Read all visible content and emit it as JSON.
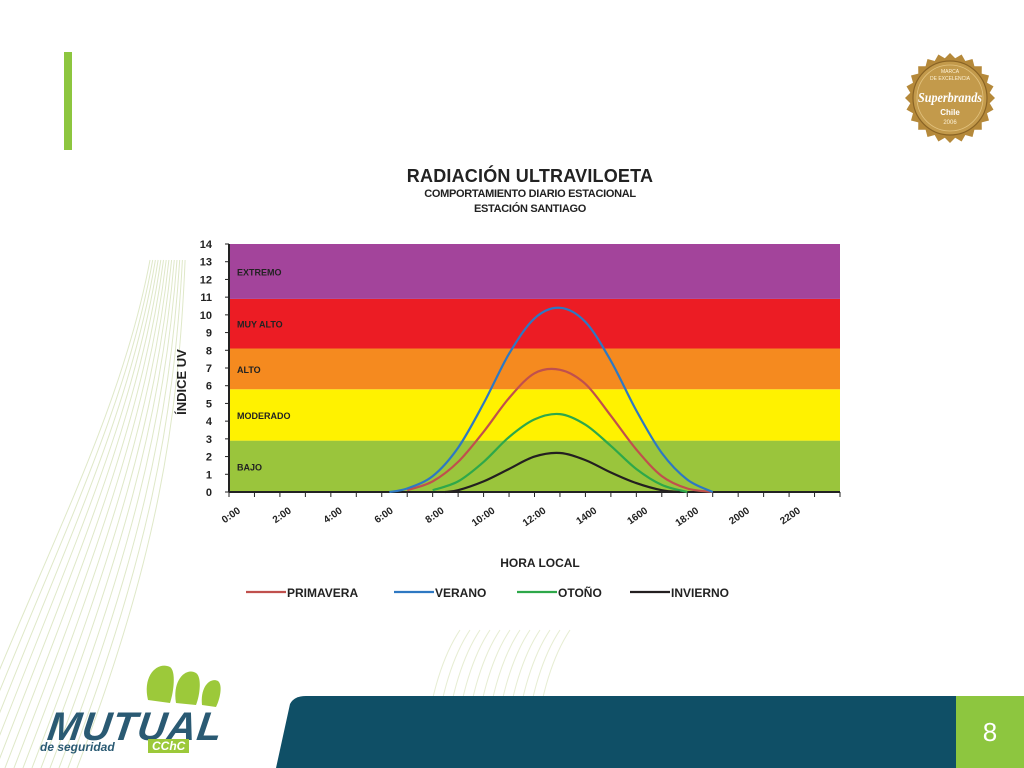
{
  "colors": {
    "accent_green": "#8dc63f",
    "footer_blue": "#0f4f66",
    "logo_green": "#9cc93a",
    "logo_blue": "#2a5a73",
    "badge_gold": "#b5893a"
  },
  "badge": {
    "line1": "MARCA",
    "line2": "DE EXCELENCIA",
    "brand": "Superbrands",
    "country": "Chile",
    "year": "2006"
  },
  "logo": {
    "name": "MUTUAL",
    "tagline": "de seguridad",
    "tag_badge": "CChC"
  },
  "page_number": "8",
  "chart_data": {
    "type": "line",
    "title": "RADIACIÓN ULTRAVILOETA",
    "subtitle_1": "COMPORTAMIENTO DIARIO ESTACIONAL",
    "subtitle_2": "ESTACIÓN SANTIAGO",
    "xlabel": "HORA LOCAL",
    "ylabel": "ÍNDICE UV",
    "ylim": [
      0,
      14
    ],
    "y_ticks": [
      "0",
      "1",
      "2",
      "3",
      "4",
      "5",
      "6",
      "7",
      "8",
      "9",
      "10",
      "11",
      "12",
      "13",
      "14"
    ],
    "xlim": [
      0,
      24
    ],
    "x_tick_labels": [
      "0:00",
      "2:00",
      "4:00",
      "6:00",
      "8:00",
      "10:00",
      "12:00",
      "1400",
      "1600",
      "18:00",
      "2000",
      "2200"
    ],
    "bands": [
      {
        "label": "BAJO",
        "from": 0,
        "to": 2.9,
        "color": "#9ac53c"
      },
      {
        "label": "MODERADO",
        "from": 2.9,
        "to": 5.8,
        "color": "#fff200"
      },
      {
        "label": "ALTO",
        "from": 5.8,
        "to": 8.1,
        "color": "#f58a1f"
      },
      {
        "label": "MUY ALTO",
        "from": 8.1,
        "to": 10.9,
        "color": "#ec1c24"
      },
      {
        "label": "EXTREMO",
        "from": 10.9,
        "to": 14,
        "color": "#a3449b"
      }
    ],
    "legend_position": "bottom",
    "series": [
      {
        "name": "PRIMAVERA",
        "color": "#c0504d",
        "x": [
          7,
          8,
          9,
          10,
          11,
          12,
          13,
          14,
          15,
          16,
          17,
          18,
          19
        ],
        "y": [
          0.1,
          0.6,
          1.7,
          3.4,
          5.3,
          6.7,
          6.9,
          6.1,
          4.3,
          2.4,
          0.9,
          0.2,
          0
        ]
      },
      {
        "name": "VERANO",
        "color": "#2e78c2",
        "x": [
          6.3,
          7,
          8,
          9,
          10,
          11,
          12,
          13,
          14,
          15,
          16,
          17,
          18,
          19
        ],
        "y": [
          0,
          0.2,
          0.9,
          2.5,
          5.0,
          7.8,
          9.8,
          10.4,
          9.6,
          7.4,
          4.6,
          2.2,
          0.7,
          0
        ]
      },
      {
        "name": "OTOÑO",
        "color": "#2ea84a",
        "x": [
          8,
          9,
          10,
          11,
          12,
          13,
          14,
          15,
          16,
          17,
          18
        ],
        "y": [
          0.1,
          0.6,
          1.7,
          3.1,
          4.1,
          4.4,
          3.8,
          2.6,
          1.3,
          0.4,
          0
        ]
      },
      {
        "name": "INVIERNO",
        "color": "#231f20",
        "x": [
          8.5,
          9,
          10,
          11,
          12,
          13,
          14,
          15,
          16,
          17,
          17.7
        ],
        "y": [
          0,
          0.1,
          0.6,
          1.3,
          2.0,
          2.2,
          1.8,
          1.1,
          0.5,
          0.1,
          0
        ]
      }
    ]
  }
}
